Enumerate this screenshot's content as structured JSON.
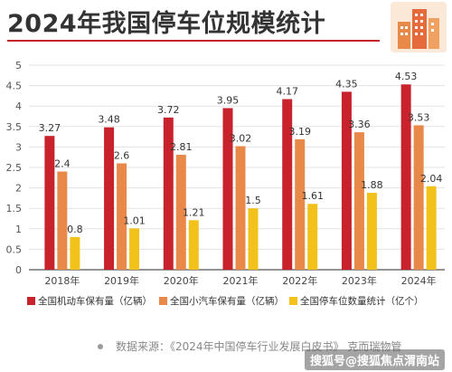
{
  "title": "2024年我国停车位规模统计",
  "source": "数据来源：《2024年中国停车行业发展白皮书》 克而瑞物管",
  "watermark": "搜狐号@搜狐焦点渭南站",
  "logo_icon": "buildings-logo-icon",
  "colors": {
    "series1": "#c8232c",
    "series2": "#e8894a",
    "series3": "#f2c21b",
    "grid": "#e3e3e3",
    "axis": "#555555",
    "title_rule": "#c8232c"
  },
  "chart_data": {
    "type": "bar",
    "categories": [
      "2018年",
      "2019年",
      "2020年",
      "2021年",
      "2022年",
      "2023年",
      "2024年"
    ],
    "series": [
      {
        "name": "全国机动车保有量（亿辆）",
        "values": [
          3.27,
          3.48,
          3.72,
          3.95,
          4.17,
          4.35,
          4.53
        ],
        "color": "#c8232c"
      },
      {
        "name": "全国小汽车保有量（亿辆）",
        "values": [
          2.4,
          2.6,
          2.81,
          3.02,
          3.19,
          3.36,
          3.53
        ],
        "color": "#e8894a"
      },
      {
        "name": "全国停车位数量统计（亿个）",
        "values": [
          0.8,
          1.01,
          1.21,
          1.5,
          1.61,
          1.88,
          2.04
        ],
        "color": "#f2c21b"
      }
    ],
    "data_labels": [
      [
        "3.27",
        "3.48",
        "3.72",
        "3.95",
        "4.17",
        "4.35",
        "4.53"
      ],
      [
        "2.4",
        "2.6",
        "2.81",
        "3.02",
        "3.19",
        "3.36",
        "3.53"
      ],
      [
        "0.8",
        "1.01",
        "1.21",
        "1.5",
        "1.61",
        "1.88",
        "2.04"
      ]
    ],
    "yticks": [
      "0",
      "0.5",
      "1",
      "1.5",
      "2",
      "2.5",
      "3",
      "3.5",
      "4",
      "4.5",
      "5"
    ],
    "ylim": [
      0,
      5
    ],
    "grid": true,
    "legend_position": "bottom",
    "xlabel": "",
    "ylabel": ""
  }
}
